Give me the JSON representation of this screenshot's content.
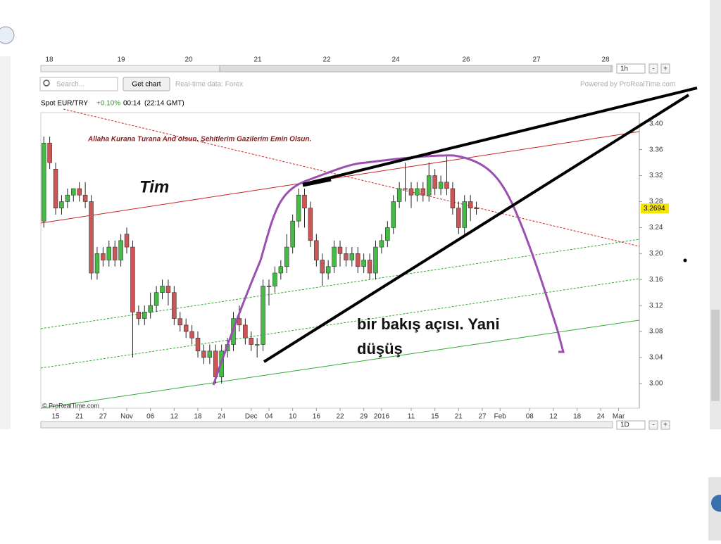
{
  "ui": {
    "top_axis": [
      "18",
      "19",
      "20",
      "21",
      "22",
      "24",
      "26",
      "27",
      "28"
    ],
    "search_placeholder": "Search...",
    "get_chart": "Get chart",
    "realtime": "Real-time data: Forex",
    "powered": "Powered by ProRealTime.com",
    "change": "+0.10%",
    "time": "00:14",
    "gmt": "(22:14 GMT)",
    "interval_top": "1h",
    "interval_bottom": "1D",
    "minus": "-",
    "plus": "+",
    "copyright": "© ProRealTime.com"
  },
  "chart_data": {
    "type": "candlestick",
    "title": "Spot EUR/TRY",
    "annotations": [
      "Allaha Kurana  Turana And olsun. Şehitlerim  Gazilerim Emin  Olsun.",
      "Tim",
      "bir bakış açısı. Yani",
      "düşüş"
    ],
    "categories": [
      null,
      null,
      "15",
      null,
      null,
      null,
      "21",
      null,
      null,
      null,
      "27",
      null,
      null,
      null,
      "Nov",
      null,
      null,
      null,
      "06",
      null,
      null,
      null,
      "12",
      null,
      null,
      null,
      "18",
      null,
      null,
      null,
      "24",
      null,
      null,
      null,
      null,
      "Dec",
      null,
      null,
      "04",
      null,
      null,
      null,
      "10",
      null,
      null,
      null,
      "16",
      null,
      null,
      null,
      "22",
      null,
      null,
      null,
      "29",
      null,
      null,
      "2016",
      null,
      null,
      null,
      null,
      "11",
      null,
      null,
      null,
      "15",
      null,
      null,
      null,
      "21",
      null,
      null,
      null,
      "27",
      null,
      null,
      "Feb",
      null,
      null,
      null,
      null,
      "08",
      null,
      null,
      null,
      "12",
      null,
      null,
      null,
      "18",
      null,
      null,
      null,
      "24",
      null,
      null,
      "Mar",
      null,
      null,
      null
    ],
    "open": [
      3.25,
      3.37,
      3.33,
      3.27,
      3.28,
      3.29,
      3.3,
      3.29,
      3.28,
      3.17,
      3.2,
      3.19,
      3.21,
      3.19,
      3.23,
      3.21,
      3.11,
      3.1,
      3.11,
      3.12,
      3.14,
      3.15,
      3.14,
      3.1,
      3.09,
      3.08,
      3.07,
      3.05,
      3.04,
      3.05,
      3.01,
      3.05,
      3.06,
      3.1,
      3.09,
      3.07,
      3.06,
      3.06,
      3.15,
      3.15,
      3.17,
      3.18,
      3.21,
      3.25,
      3.29,
      3.27,
      3.22,
      3.19,
      3.17,
      3.18,
      3.21,
      3.2,
      3.19,
      3.2,
      3.18,
      3.19,
      3.17,
      3.21,
      3.22,
      3.24,
      3.28,
      3.3,
      3.3,
      3.29,
      3.3,
      3.29,
      3.32,
      3.3,
      3.31,
      3.3,
      3.27,
      3.24,
      3.28,
      3.27,
      null,
      null,
      null,
      null,
      null,
      null,
      null,
      null,
      null,
      null,
      null,
      null,
      null,
      null,
      null,
      null,
      null,
      null,
      null,
      null,
      null,
      null,
      null,
      null,
      null,
      null,
      null
    ],
    "high": [
      3.38,
      3.38,
      3.34,
      3.29,
      3.3,
      3.3,
      3.31,
      3.31,
      3.29,
      3.21,
      3.21,
      3.22,
      3.22,
      3.23,
      3.24,
      3.22,
      3.12,
      3.12,
      3.14,
      3.15,
      3.16,
      3.16,
      3.15,
      3.11,
      3.1,
      3.09,
      3.08,
      3.06,
      3.06,
      3.06,
      3.06,
      3.07,
      3.11,
      3.12,
      3.1,
      3.08,
      3.07,
      3.16,
      3.16,
      3.18,
      3.19,
      3.23,
      3.26,
      3.3,
      3.3,
      3.28,
      3.23,
      3.2,
      3.19,
      3.22,
      3.22,
      3.21,
      3.21,
      3.21,
      3.2,
      3.2,
      3.22,
      3.23,
      3.25,
      3.29,
      3.31,
      3.34,
      3.31,
      3.31,
      3.31,
      3.34,
      3.33,
      3.32,
      3.35,
      3.31,
      3.28,
      3.29,
      3.29,
      3.28,
      null,
      null,
      null,
      null,
      null,
      null,
      null,
      null,
      null,
      null,
      null,
      null,
      null,
      null,
      null,
      null,
      null,
      null,
      null,
      null,
      null,
      null,
      null,
      null,
      null,
      null,
      null
    ],
    "low": [
      3.24,
      3.33,
      3.26,
      3.26,
      3.27,
      3.28,
      3.28,
      3.27,
      3.16,
      3.16,
      3.18,
      3.18,
      3.18,
      3.18,
      3.2,
      3.04,
      3.09,
      3.09,
      3.1,
      3.11,
      3.13,
      3.12,
      3.09,
      3.08,
      3.07,
      3.06,
      3.04,
      3.03,
      3.03,
      3.0,
      3.0,
      3.04,
      3.05,
      3.08,
      3.06,
      3.05,
      3.04,
      3.05,
      3.12,
      3.14,
      3.16,
      3.17,
      3.2,
      3.24,
      3.24,
      3.21,
      3.18,
      3.15,
      3.16,
      3.17,
      3.18,
      3.18,
      3.18,
      3.17,
      3.17,
      3.16,
      3.16,
      3.2,
      3.21,
      3.23,
      3.27,
      3.28,
      3.27,
      3.28,
      3.28,
      3.28,
      3.29,
      3.29,
      3.29,
      3.26,
      3.23,
      3.23,
      3.25,
      3.26,
      null,
      null,
      null,
      null,
      null,
      null,
      null,
      null,
      null,
      null,
      null,
      null,
      null,
      null,
      null,
      null,
      null,
      null,
      null,
      null,
      null,
      null,
      null,
      null,
      null,
      null,
      null
    ],
    "close": [
      3.37,
      3.34,
      3.27,
      3.28,
      3.29,
      3.3,
      3.29,
      3.28,
      3.17,
      3.2,
      3.19,
      3.21,
      3.19,
      3.22,
      3.21,
      3.11,
      3.1,
      3.11,
      3.12,
      3.14,
      3.15,
      3.14,
      3.1,
      3.09,
      3.08,
      3.07,
      3.05,
      3.04,
      3.05,
      3.01,
      3.05,
      3.06,
      3.1,
      3.09,
      3.07,
      3.06,
      3.06,
      3.15,
      3.15,
      3.17,
      3.18,
      3.21,
      3.25,
      3.29,
      3.27,
      3.22,
      3.19,
      3.17,
      3.18,
      3.21,
      3.2,
      3.19,
      3.2,
      3.18,
      3.19,
      3.17,
      3.21,
      3.22,
      3.24,
      3.28,
      3.3,
      3.3,
      3.29,
      3.3,
      3.29,
      3.32,
      3.3,
      3.31,
      3.3,
      3.27,
      3.24,
      3.28,
      3.27,
      3.2694,
      null,
      null,
      null,
      null,
      null,
      null,
      null,
      null,
      null,
      null,
      null,
      null,
      null,
      null,
      null,
      null,
      null,
      null,
      null,
      null,
      null,
      null,
      null,
      null,
      null,
      null,
      null
    ],
    "last_price": 3.2694,
    "up_color": "#44bb44",
    "down_color": "#cc5555",
    "ylim": [
      2.962,
      3.417
    ],
    "yticks": [
      {
        "value": 3.0,
        "label": "3.00"
      },
      3.04,
      3.08,
      3.12,
      3.16,
      {
        "value": 3.2,
        "label": "3.20"
      },
      3.24,
      3.28,
      3.32,
      3.36,
      {
        "value": 3.4,
        "label": "3.40"
      }
    ]
  }
}
